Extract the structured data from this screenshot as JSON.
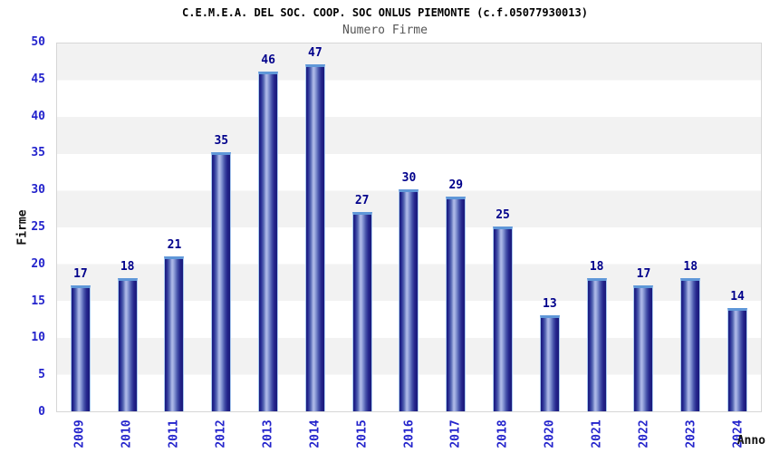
{
  "header": {
    "title": "C.E.M.E.A. DEL SOC. COOP. SOC ONLUS PIEMONTE (c.f.05077930013)",
    "subtitle": "Numero Firme"
  },
  "chart_data": {
    "type": "bar",
    "title": "C.E.M.E.A. DEL SOC. COOP. SOC ONLUS PIEMONTE (c.f.05077930013)",
    "subtitle": "Numero Firme",
    "xlabel": "Anno",
    "ylabel": "Firme",
    "categories": [
      "2009",
      "2010",
      "2011",
      "2012",
      "2013",
      "2014",
      "2015",
      "2016",
      "2017",
      "2018",
      "2020",
      "2021",
      "2022",
      "2023",
      "2024"
    ],
    "values": [
      17,
      18,
      21,
      35,
      46,
      47,
      27,
      30,
      29,
      25,
      13,
      18,
      17,
      18,
      14
    ],
    "ylim": [
      0,
      50
    ],
    "ytick_step": 5,
    "grid": "horizontal-bands-alternating",
    "legend": "none",
    "colors": {
      "bar_edge_dark": "#1a1a7a",
      "bar_center_light": "#aab6e6",
      "bar_cap": "#5f97d8",
      "bar_outline": "#a9c9f0",
      "tick_label": "#2424cc",
      "value_label": "#00008b",
      "band_gray": "#f2f2f2",
      "band_white": "#ffffff",
      "plot_border": "#d6d6d6",
      "title_color": "#000000",
      "subtitle_color": "#555555"
    }
  }
}
